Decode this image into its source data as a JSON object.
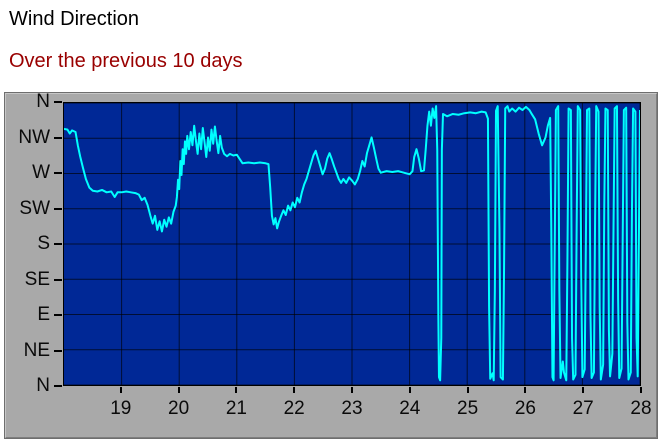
{
  "header": {
    "title": "Wind Direction",
    "subtitle": "Over the previous 10 days",
    "title_color": "#000000",
    "subtitle_color": "#990000"
  },
  "chart_data": {
    "type": "line",
    "title": "Wind Direction",
    "subtitle": "Over the previous 10 days",
    "xlabel": "",
    "ylabel": "",
    "xlim": [
      18,
      28
    ],
    "ylim": [
      0,
      360
    ],
    "grid": true,
    "legend": "none",
    "x_ticks": [
      19,
      20,
      21,
      22,
      23,
      24,
      25,
      26,
      27,
      28
    ],
    "y_ticks": [
      {
        "value": 360,
        "label": "N"
      },
      {
        "value": 315,
        "label": "NW"
      },
      {
        "value": 270,
        "label": "W"
      },
      {
        "value": 225,
        "label": "SW"
      },
      {
        "value": 180,
        "label": "S"
      },
      {
        "value": 135,
        "label": "SE"
      },
      {
        "value": 90,
        "label": "E"
      },
      {
        "value": 45,
        "label": "NE"
      },
      {
        "value": 0,
        "label": "N"
      }
    ],
    "colors": {
      "line": "#00ffff",
      "plot_bg": "#002896",
      "grid": "rgba(0,0,0,0.65)",
      "frame_bg": "#a9a9a9",
      "tick": "#000000",
      "label": "#0a0a0a"
    },
    "series": [
      {
        "name": "Wind Direction",
        "points": [
          [
            18.0,
            327
          ],
          [
            18.06,
            326
          ],
          [
            18.1,
            321
          ],
          [
            18.14,
            325
          ],
          [
            18.2,
            323
          ],
          [
            18.24,
            306
          ],
          [
            18.28,
            292
          ],
          [
            18.33,
            277
          ],
          [
            18.38,
            263
          ],
          [
            18.44,
            252
          ],
          [
            18.5,
            248
          ],
          [
            18.58,
            247
          ],
          [
            18.66,
            249
          ],
          [
            18.74,
            246
          ],
          [
            18.82,
            247
          ],
          [
            18.88,
            240
          ],
          [
            18.93,
            246
          ],
          [
            19.0,
            246
          ],
          [
            19.08,
            247
          ],
          [
            19.16,
            246
          ],
          [
            19.24,
            245
          ],
          [
            19.3,
            243
          ],
          [
            19.35,
            236
          ],
          [
            19.4,
            239
          ],
          [
            19.45,
            230
          ],
          [
            19.5,
            216
          ],
          [
            19.54,
            206
          ],
          [
            19.58,
            216
          ],
          [
            19.62,
            198
          ],
          [
            19.66,
            209
          ],
          [
            19.7,
            196
          ],
          [
            19.74,
            211
          ],
          [
            19.78,
            202
          ],
          [
            19.82,
            214
          ],
          [
            19.86,
            206
          ],
          [
            19.9,
            221
          ],
          [
            19.94,
            229
          ],
          [
            19.96,
            240
          ],
          [
            19.98,
            262
          ],
          [
            20.0,
            250
          ],
          [
            20.02,
            286
          ],
          [
            20.04,
            268
          ],
          [
            20.06,
            301
          ],
          [
            20.08,
            282
          ],
          [
            20.1,
            311
          ],
          [
            20.12,
            295
          ],
          [
            20.14,
            318
          ],
          [
            20.17,
            301
          ],
          [
            20.2,
            323
          ],
          [
            20.23,
            306
          ],
          [
            20.26,
            331
          ],
          [
            20.29,
            312
          ],
          [
            20.32,
            295
          ],
          [
            20.35,
            321
          ],
          [
            20.38,
            301
          ],
          [
            20.41,
            328
          ],
          [
            20.44,
            310
          ],
          [
            20.47,
            291
          ],
          [
            20.5,
            316
          ],
          [
            20.53,
            299
          ],
          [
            20.56,
            326
          ],
          [
            20.59,
            308
          ],
          [
            20.62,
            330
          ],
          [
            20.65,
            312
          ],
          [
            20.68,
            296
          ],
          [
            20.71,
            318
          ],
          [
            20.74,
            303
          ],
          [
            20.78,
            295
          ],
          [
            20.83,
            292
          ],
          [
            20.88,
            295
          ],
          [
            20.94,
            293
          ],
          [
            21.0,
            294
          ],
          [
            21.1,
            283
          ],
          [
            21.2,
            284
          ],
          [
            21.3,
            283
          ],
          [
            21.4,
            284
          ],
          [
            21.5,
            283
          ],
          [
            21.55,
            282
          ],
          [
            21.58,
            252
          ],
          [
            21.61,
            216
          ],
          [
            21.64,
            205
          ],
          [
            21.67,
            213
          ],
          [
            21.7,
            200
          ],
          [
            21.73,
            208
          ],
          [
            21.77,
            216
          ],
          [
            21.81,
            223
          ],
          [
            21.85,
            217
          ],
          [
            21.89,
            229
          ],
          [
            21.93,
            223
          ],
          [
            21.97,
            233
          ],
          [
            22.01,
            227
          ],
          [
            22.05,
            239
          ],
          [
            22.09,
            233
          ],
          [
            22.13,
            246
          ],
          [
            22.17,
            256
          ],
          [
            22.21,
            263
          ],
          [
            22.25,
            273
          ],
          [
            22.29,
            283
          ],
          [
            22.33,
            293
          ],
          [
            22.37,
            299
          ],
          [
            22.41,
            289
          ],
          [
            22.45,
            279
          ],
          [
            22.49,
            269
          ],
          [
            22.53,
            276
          ],
          [
            22.57,
            289
          ],
          [
            22.61,
            296
          ],
          [
            22.65,
            288
          ],
          [
            22.69,
            279
          ],
          [
            22.73,
            271
          ],
          [
            22.77,
            263
          ],
          [
            22.81,
            258
          ],
          [
            22.85,
            263
          ],
          [
            22.9,
            258
          ],
          [
            22.95,
            265
          ],
          [
            23.0,
            261
          ],
          [
            23.05,
            256
          ],
          [
            23.1,
            263
          ],
          [
            23.14,
            273
          ],
          [
            23.18,
            286
          ],
          [
            23.22,
            279
          ],
          [
            23.26,
            296
          ],
          [
            23.3,
            306
          ],
          [
            23.34,
            316
          ],
          [
            23.38,
            303
          ],
          [
            23.42,
            289
          ],
          [
            23.46,
            276
          ],
          [
            23.5,
            271
          ],
          [
            23.6,
            273
          ],
          [
            23.7,
            272
          ],
          [
            23.8,
            273
          ],
          [
            23.9,
            271
          ],
          [
            24.0,
            269
          ],
          [
            24.05,
            273
          ],
          [
            24.08,
            291
          ],
          [
            24.12,
            301
          ],
          [
            24.16,
            289
          ],
          [
            24.2,
            273
          ],
          [
            24.25,
            274
          ],
          [
            24.28,
            301
          ],
          [
            24.31,
            331
          ],
          [
            24.34,
            349
          ],
          [
            24.37,
            331
          ],
          [
            24.4,
            353
          ],
          [
            24.43,
            341
          ],
          [
            24.46,
            356
          ],
          [
            24.48,
            300
          ],
          [
            24.5,
            80
          ],
          [
            24.51,
            10
          ],
          [
            24.53,
            6
          ],
          [
            24.55,
            60
          ],
          [
            24.56,
            300
          ],
          [
            24.58,
            346
          ],
          [
            24.65,
            343
          ],
          [
            24.75,
            346
          ],
          [
            24.85,
            345
          ],
          [
            24.95,
            347
          ],
          [
            25.05,
            348
          ],
          [
            25.15,
            347
          ],
          [
            25.25,
            349
          ],
          [
            25.32,
            348
          ],
          [
            25.36,
            340
          ],
          [
            25.38,
            100
          ],
          [
            25.4,
            8
          ],
          [
            25.44,
            15
          ],
          [
            25.46,
            6
          ],
          [
            25.48,
            120
          ],
          [
            25.5,
            350
          ],
          [
            25.53,
            356
          ],
          [
            25.56,
            200
          ],
          [
            25.58,
            10
          ],
          [
            25.62,
            7
          ],
          [
            25.64,
            150
          ],
          [
            25.66,
            353
          ],
          [
            25.7,
            356
          ],
          [
            25.73,
            349
          ],
          [
            25.78,
            353
          ],
          [
            25.84,
            349
          ],
          [
            25.9,
            354
          ],
          [
            25.96,
            351
          ],
          [
            26.02,
            355
          ],
          [
            26.08,
            351
          ],
          [
            26.12,
            346
          ],
          [
            26.18,
            339
          ],
          [
            26.24,
            321
          ],
          [
            26.3,
            306
          ],
          [
            26.36,
            316
          ],
          [
            26.4,
            331
          ],
          [
            26.44,
            341
          ],
          [
            26.46,
            200
          ],
          [
            26.48,
            10
          ],
          [
            26.5,
            6
          ],
          [
            26.52,
            180
          ],
          [
            26.54,
            351
          ],
          [
            26.58,
            356
          ],
          [
            26.6,
            120
          ],
          [
            26.62,
            9
          ],
          [
            26.66,
            30
          ],
          [
            26.68,
            16
          ],
          [
            26.72,
            6
          ],
          [
            26.74,
            160
          ],
          [
            26.76,
            353
          ],
          [
            26.8,
            351
          ],
          [
            26.82,
            60
          ],
          [
            26.84,
            7
          ],
          [
            26.88,
            13
          ],
          [
            26.9,
            200
          ],
          [
            26.92,
            356
          ],
          [
            26.96,
            351
          ],
          [
            26.98,
            140
          ],
          [
            27.0,
            10
          ],
          [
            27.04,
            20
          ],
          [
            27.06,
            180
          ],
          [
            27.08,
            351
          ],
          [
            27.12,
            353
          ],
          [
            27.14,
            90
          ],
          [
            27.16,
            9
          ],
          [
            27.2,
            16
          ],
          [
            27.22,
            210
          ],
          [
            27.24,
            356
          ],
          [
            27.28,
            349
          ],
          [
            27.3,
            100
          ],
          [
            27.32,
            7
          ],
          [
            27.36,
            26
          ],
          [
            27.38,
            230
          ],
          [
            27.4,
            353
          ],
          [
            27.44,
            351
          ],
          [
            27.46,
            70
          ],
          [
            27.48,
            11
          ],
          [
            27.52,
            40
          ],
          [
            27.54,
            200
          ],
          [
            27.56,
            353
          ],
          [
            27.6,
            356
          ],
          [
            27.62,
            110
          ],
          [
            27.64,
            9
          ],
          [
            27.68,
            21
          ],
          [
            27.7,
            190
          ],
          [
            27.72,
            351
          ],
          [
            27.76,
            354
          ],
          [
            27.78,
            80
          ],
          [
            27.8,
            7
          ],
          [
            27.84,
            16
          ],
          [
            27.86,
            220
          ],
          [
            27.88,
            353
          ],
          [
            27.92,
            349
          ],
          [
            27.94,
            60
          ],
          [
            27.96,
            11
          ],
          [
            27.98,
            180
          ],
          [
            28.0,
            351
          ]
        ]
      }
    ]
  }
}
